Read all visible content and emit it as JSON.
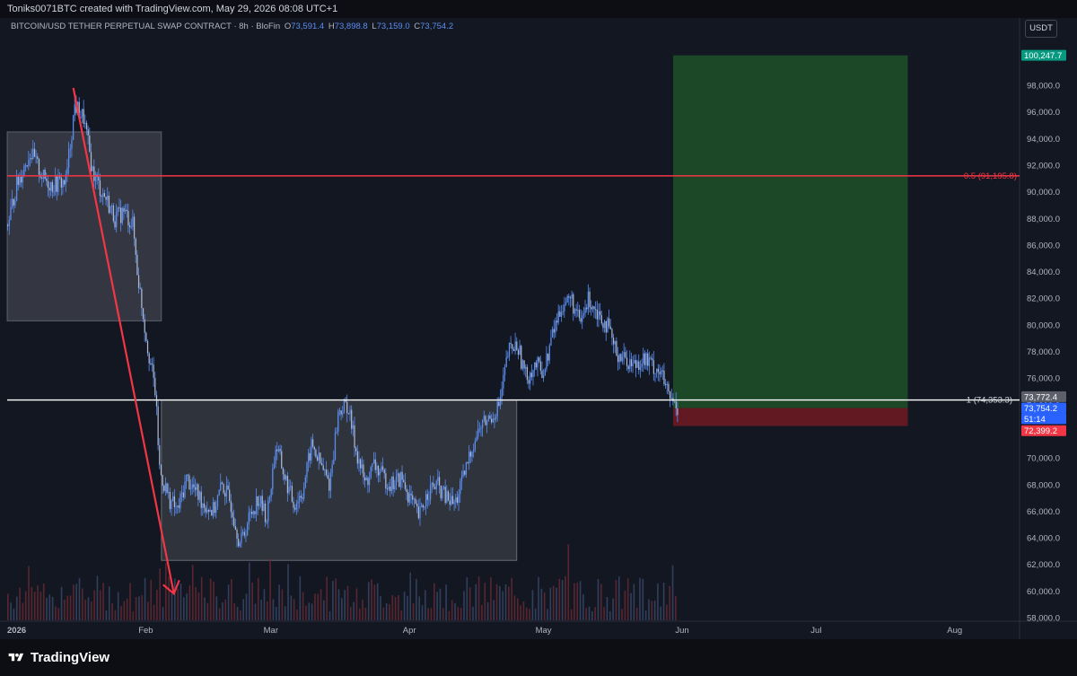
{
  "header": {
    "attribution": "Toniks0071BTC created with TradingView.com, May 29, 2026 08:08 UTC+1"
  },
  "legend": {
    "symbol": "BITCOIN/USD TETHER PERPETUAL SWAP CONTRACT · 8h · BloFin",
    "open_label": "O",
    "open": "73,591.4",
    "high_label": "H",
    "high": "73,898.8",
    "low_label": "L",
    "low": "73,159.0",
    "close_label": "C",
    "close": "73,754.2"
  },
  "currency": "USDT",
  "brand": "TradingView",
  "colors": {
    "background": "#131722",
    "candle": "#5b8def",
    "fib_line": "#f23645",
    "level_line": "#ffffff",
    "target_zone": "#1e5128",
    "stop_zone": "#6b1a22",
    "arrow": "#f23645",
    "volume_up": "#3a4a6b",
    "volume_down": "#6b2a33"
  },
  "chart_data": {
    "type": "candlestick",
    "interval": "8h",
    "ylim": [
      58000,
      102000
    ],
    "y_ticks": [
      58000,
      60000,
      62000,
      64000,
      66000,
      68000,
      70000,
      72000,
      74000,
      76000,
      78000,
      80000,
      82000,
      84000,
      86000,
      88000,
      90000,
      92000,
      94000,
      96000,
      98000
    ],
    "y_tick_labels": [
      "58,000.0",
      "60,000.0",
      "62,000.0",
      "64,000.0",
      "66,000.0",
      "68,000.0",
      "70,000.0",
      "72,000.0",
      "74,000.0",
      "76,000.0",
      "78,000.0",
      "80,000.0",
      "82,000.0",
      "84,000.0",
      "86,000.0",
      "88,000.0",
      "90,000.0",
      "92,000.0",
      "94,000.0",
      "96,000.0",
      "98,000.0"
    ],
    "x_ticks": [
      "2026",
      "Feb",
      "Mar",
      "Apr",
      "May",
      "Jun",
      "Jul",
      "Aug"
    ],
    "x_tick_days": [
      0,
      31,
      59,
      90,
      120,
      151,
      181,
      212
    ],
    "price_path_days": [
      0,
      2,
      5,
      8,
      10,
      13,
      15,
      17,
      19,
      21,
      22,
      24,
      26,
      28,
      29,
      31,
      33,
      34,
      36,
      38,
      40,
      42,
      44,
      46,
      48,
      50,
      52,
      54,
      56,
      58,
      60,
      62,
      64,
      66,
      68,
      70,
      72,
      74,
      76,
      78,
      80,
      82,
      84,
      86,
      88,
      90,
      92,
      94,
      96,
      98,
      100,
      102,
      104,
      106,
      108,
      110,
      112,
      114,
      116,
      118,
      120,
      122,
      124,
      126,
      128,
      130,
      132,
      134,
      136,
      138,
      140,
      142,
      144,
      146,
      148,
      150
    ],
    "price_path": [
      87500,
      90500,
      93000,
      91000,
      90500,
      90800,
      96500,
      95500,
      91500,
      90000,
      89500,
      88000,
      88500,
      87500,
      84000,
      79000,
      75000,
      69000,
      67000,
      66000,
      68500,
      67500,
      66500,
      66000,
      68000,
      66500,
      63500,
      65500,
      67000,
      65500,
      71000,
      68500,
      66500,
      67500,
      71000,
      69500,
      68000,
      73500,
      74000,
      70500,
      68000,
      69500,
      68500,
      68000,
      68500,
      67000,
      65500,
      67500,
      68000,
      67000,
      66500,
      68500,
      71000,
      72500,
      73000,
      74000,
      78000,
      78500,
      76000,
      77000,
      76500,
      79500,
      81500,
      82000,
      80000,
      82000,
      81000,
      80000,
      78000,
      77500,
      77000,
      77500,
      77000,
      76500,
      74500,
      73754.2
    ],
    "annotations": {
      "fib_label": "0.5 (91,195.8)",
      "fib_price": 91195.8,
      "level_label": "1 (74,353.3)",
      "level_price": 74353.3,
      "target_price": 100247.7,
      "stop_price": 72399.2,
      "entry_price": 73754.2
    },
    "price_tags": [
      {
        "label": "100,247.7",
        "price": 100247.7,
        "color": "#089981"
      },
      {
        "label": "73,772.4",
        "price": 74600,
        "color": "#5d606b"
      },
      {
        "label": "73,754.2",
        "price": 73754.2,
        "color": "#2962ff"
      },
      {
        "label": "51:14",
        "price": 72950,
        "color": "#2962ff"
      },
      {
        "label": "72,399.2",
        "price": 72050,
        "color": "#f23645"
      }
    ]
  }
}
